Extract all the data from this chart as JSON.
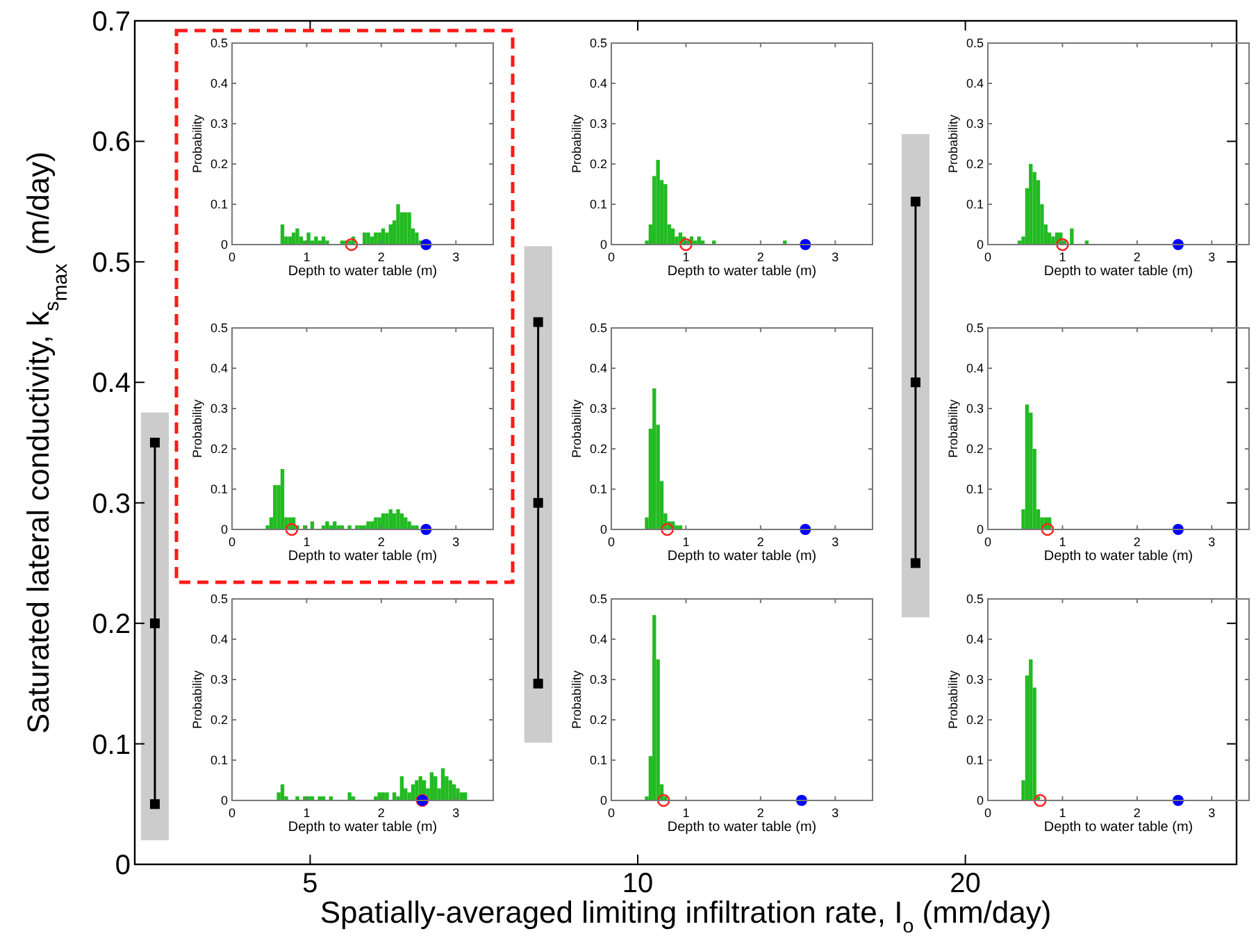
{
  "chart_data": [
    {
      "type": "line",
      "xlabel": "Spatially-averaged limiting infiltration rate, I$_{o}$ (mm/day)",
      "ylabel": "Saturated lateral conductivity, k$_{s}$$_{max}$ (m/day)",
      "log": "x",
      "xlim": [
        3.45,
        35.5
      ],
      "xticks": [
        5,
        10,
        20
      ],
      "ylim": [
        0,
        0.7
      ],
      "yticks": [
        0,
        0.1,
        0.2,
        0.3,
        0.4,
        0.5,
        0.6,
        0.7
      ],
      "grid": false,
      "series": [
        {
          "type": "bar",
          "x": [
            3.6,
            8.1,
            18
          ],
          "base": [
            0.02,
            0.101,
            0.205
          ],
          "values": [
            0.355,
            0.412,
            0.401
          ],
          "color": "#cccccc"
        },
        {
          "type": "line",
          "x": [
            3.6,
            3.6,
            3.6
          ],
          "values": [
            0.05,
            0.2,
            0.35
          ],
          "color": "#000000",
          "marker": "square"
        },
        {
          "type": "line",
          "x": [
            8.1,
            8.1,
            8.1
          ],
          "values": [
            0.15,
            0.3,
            0.45
          ],
          "color": "#000000",
          "marker": "square"
        },
        {
          "type": "line",
          "x": [
            18,
            18,
            18
          ],
          "values": [
            0.25,
            0.4,
            0.55
          ],
          "color": "#000000",
          "marker": "square"
        }
      ]
    },
    {
      "type": "histogram",
      "xlabel": "Depth to water table (m)",
      "ylabel": "Probability",
      "xlim": [
        0,
        3.5
      ],
      "xticks": [
        0,
        1,
        2,
        3
      ],
      "ylim": [
        0,
        0.5
      ],
      "yticks": [
        0,
        0.1,
        0.2,
        0.3,
        0.4,
        0.5
      ],
      "series": [
        {
          "type": "histogram",
          "color": "#22bb22",
          "bins": [
            0.65,
            0.7,
            0.75,
            0.8,
            0.85,
            0.9,
            0.95,
            1,
            1.05,
            1.1,
            1.15,
            1.2,
            1.25,
            1.3,
            1.35,
            1.4,
            1.45,
            1.5,
            1.55,
            1.6,
            1.65,
            1.7,
            1.75,
            1.8,
            1.85,
            1.9,
            1.95,
            2,
            2.05,
            2.1,
            2.15,
            2.2,
            2.25,
            2.3,
            2.35,
            2.4,
            2.45,
            2.5,
            2.55
          ],
          "values": [
            0.05,
            0.02,
            0.02,
            0.03,
            0.04,
            0.02,
            0.01,
            0.03,
            0.01,
            0.02,
            0.01,
            0.02,
            0.01,
            0,
            0,
            0,
            0.01,
            0.01,
            0.01,
            0.02,
            0,
            0,
            0.03,
            0.03,
            0.02,
            0.03,
            0.03,
            0.04,
            0.03,
            0.05,
            0.06,
            0.1,
            0.08,
            0.08,
            0.08,
            0.04,
            0.03,
            0.01
          ]
        },
        {
          "type": "scatter",
          "x": [
            1.6
          ],
          "values": [
            0
          ],
          "color": "#ff2222",
          "marker": "circle-open"
        },
        {
          "type": "scatter",
          "x": [
            2.6
          ],
          "values": [
            0
          ],
          "color": "#0000ff",
          "marker": "circle"
        }
      ]
    },
    {
      "type": "histogram",
      "xlabel": "Depth to water table (m)",
      "ylabel": "Probability",
      "xlim": [
        0,
        3.5
      ],
      "xticks": [
        0,
        1,
        2,
        3
      ],
      "ylim": [
        0,
        0.5
      ],
      "yticks": [
        0,
        0.1,
        0.2,
        0.3,
        0.4,
        0.5
      ],
      "series": [
        {
          "type": "histogram",
          "color": "#22bb22",
          "bins": [
            0.45,
            0.5,
            0.55,
            0.6,
            0.65,
            0.7,
            0.75,
            0.8,
            0.85,
            0.9,
            0.95,
            1,
            1.05,
            1.1,
            1.15,
            1.2,
            1.25,
            1.3,
            1.35,
            1.4,
            1.45,
            1.5,
            1.55,
            1.6,
            1.65,
            1.7,
            1.75,
            1.8,
            1.85,
            1.9,
            1.95,
            2,
            2.05,
            2.1,
            2.15,
            2.2,
            2.25,
            2.3,
            2.35
          ],
          "values": [
            0.01,
            0.05,
            0.17,
            0.21,
            0.16,
            0.15,
            0.05,
            0.04,
            0.02,
            0.03,
            0.02,
            0.01,
            0.02,
            0.01,
            0.02,
            0.01,
            0,
            0,
            0.01,
            0,
            0,
            0,
            0,
            0,
            0,
            0,
            0,
            0,
            0,
            0,
            0,
            0,
            0,
            0,
            0,
            0,
            0,
            0.01
          ]
        },
        {
          "type": "scatter",
          "x": [
            1
          ],
          "values": [
            0
          ],
          "color": "#ff2222",
          "marker": "circle-open"
        },
        {
          "type": "scatter",
          "x": [
            2.6
          ],
          "values": [
            0
          ],
          "color": "#0000ff",
          "marker": "circle"
        }
      ]
    },
    {
      "type": "histogram",
      "xlabel": "Depth to water table (m)",
      "ylabel": "Probability",
      "xlim": [
        0,
        3.5
      ],
      "xticks": [
        0,
        1,
        2,
        3
      ],
      "ylim": [
        0,
        0.5
      ],
      "yticks": [
        0,
        0.1,
        0.2,
        0.3,
        0.4,
        0.5
      ],
      "series": [
        {
          "type": "histogram",
          "color": "#22bb22",
          "bins": [
            0.4,
            0.45,
            0.5,
            0.55,
            0.6,
            0.65,
            0.7,
            0.75,
            0.8,
            0.85,
            0.9,
            0.95,
            1,
            1.05,
            1.1,
            1.15,
            1.2,
            1.25,
            1.3,
            1.35
          ],
          "values": [
            0.01,
            0.02,
            0.14,
            0.2,
            0.18,
            0.16,
            0.1,
            0.05,
            0.03,
            0.02,
            0.03,
            0.03,
            0.01,
            0,
            0.04,
            0,
            0,
            0,
            0.01
          ]
        },
        {
          "type": "scatter",
          "x": [
            1
          ],
          "values": [
            0
          ],
          "color": "#ff2222",
          "marker": "circle-open"
        },
        {
          "type": "scatter",
          "x": [
            2.55
          ],
          "values": [
            0
          ],
          "color": "#0000ff",
          "marker": "circle"
        }
      ]
    },
    {
      "type": "histogram",
      "xlabel": "Depth to water table (m)",
      "ylabel": "Probability",
      "xlim": [
        0,
        3.5
      ],
      "xticks": [
        0,
        1,
        2,
        3
      ],
      "ylim": [
        0,
        0.5
      ],
      "yticks": [
        0,
        0.1,
        0.2,
        0.3,
        0.4,
        0.5
      ],
      "series": [
        {
          "type": "histogram",
          "color": "#22bb22",
          "bins": [
            0.45,
            0.5,
            0.55,
            0.6,
            0.65,
            0.7,
            0.75,
            0.8,
            0.85,
            0.9,
            0.95,
            1,
            1.05,
            1.1,
            1.15,
            1.2,
            1.25,
            1.3,
            1.35,
            1.4,
            1.45,
            1.5,
            1.55,
            1.6,
            1.65,
            1.7,
            1.75,
            1.8,
            1.85,
            1.9,
            1.95,
            2,
            2.05,
            2.1,
            2.15,
            2.2,
            2.25,
            2.3,
            2.35,
            2.4,
            2.45,
            2.5
          ],
          "values": [
            0.01,
            0.03,
            0.11,
            0.11,
            0.15,
            0.03,
            0.03,
            0.03,
            0.01,
            0,
            0.01,
            0,
            0.02,
            0,
            0,
            0.01,
            0.02,
            0.01,
            0.02,
            0.01,
            0.01,
            0,
            0.01,
            0,
            0.01,
            0.01,
            0.01,
            0.02,
            0.02,
            0.03,
            0.03,
            0.04,
            0.04,
            0.05,
            0.04,
            0.05,
            0.04,
            0.03,
            0.02,
            0.01,
            0.01
          ]
        },
        {
          "type": "scatter",
          "x": [
            0.8
          ],
          "values": [
            0
          ],
          "color": "#ff2222",
          "marker": "circle-open"
        },
        {
          "type": "scatter",
          "x": [
            2.6
          ],
          "values": [
            0
          ],
          "color": "#0000ff",
          "marker": "circle"
        }
      ]
    },
    {
      "type": "histogram",
      "xlabel": "Depth to water table (m)",
      "ylabel": "Probability",
      "xlim": [
        0,
        3.5
      ],
      "xticks": [
        0,
        1,
        2,
        3
      ],
      "ylim": [
        0,
        0.5
      ],
      "yticks": [
        0,
        0.1,
        0.2,
        0.3,
        0.4,
        0.5
      ],
      "series": [
        {
          "type": "histogram",
          "color": "#22bb22",
          "bins": [
            0.45,
            0.5,
            0.55,
            0.6,
            0.65,
            0.7,
            0.75,
            0.8,
            0.85,
            0.9,
            0.95
          ],
          "values": [
            0.03,
            0.25,
            0.35,
            0.26,
            0.12,
            0.04,
            0.02,
            0.02,
            0.01,
            0.01
          ]
        },
        {
          "type": "scatter",
          "x": [
            0.75
          ],
          "values": [
            0
          ],
          "color": "#ff2222",
          "marker": "circle-open"
        },
        {
          "type": "scatter",
          "x": [
            2.6
          ],
          "values": [
            0
          ],
          "color": "#0000ff",
          "marker": "circle"
        }
      ]
    },
    {
      "type": "histogram",
      "xlabel": "Depth to water table (m)",
      "ylabel": "Probability",
      "xlim": [
        0,
        3.5
      ],
      "xticks": [
        0,
        1,
        2,
        3
      ],
      "ylim": [
        0,
        0.5
      ],
      "yticks": [
        0,
        0.1,
        0.2,
        0.3,
        0.4,
        0.5
      ],
      "series": [
        {
          "type": "histogram",
          "color": "#22bb22",
          "bins": [
            0.45,
            0.5,
            0.55,
            0.6,
            0.65,
            0.7,
            0.75,
            0.8,
            0.85
          ],
          "values": [
            0.05,
            0.31,
            0.29,
            0.2,
            0.05,
            0.03,
            0.03,
            0.03
          ]
        },
        {
          "type": "scatter",
          "x": [
            0.8
          ],
          "values": [
            0
          ],
          "color": "#ff2222",
          "marker": "circle-open"
        },
        {
          "type": "scatter",
          "x": [
            2.55
          ],
          "values": [
            0
          ],
          "color": "#0000ff",
          "marker": "circle"
        }
      ]
    },
    {
      "type": "histogram",
      "xlabel": "Depth to water table (m)",
      "ylabel": "Probability",
      "xlim": [
        0,
        3.5
      ],
      "xticks": [
        0,
        1,
        2,
        3
      ],
      "ylim": [
        0,
        0.5
      ],
      "yticks": [
        0,
        0.1,
        0.2,
        0.3,
        0.4,
        0.5
      ],
      "series": [
        {
          "type": "histogram",
          "color": "#22bb22",
          "bins": [
            0.6,
            0.65,
            0.7,
            0.75,
            0.8,
            0.85,
            0.9,
            0.95,
            1,
            1.05,
            1.1,
            1.15,
            1.2,
            1.25,
            1.3,
            1.35,
            1.4,
            1.45,
            1.5,
            1.55,
            1.6,
            1.65,
            1.7,
            1.75,
            1.8,
            1.85,
            1.9,
            1.95,
            2,
            2.05,
            2.1,
            2.15,
            2.2,
            2.25,
            2.3,
            2.35,
            2.4,
            2.45,
            2.5,
            2.55,
            2.6,
            2.65,
            2.7,
            2.75,
            2.8,
            2.85,
            2.9,
            2.95,
            3,
            3.05,
            3.1,
            3.15
          ],
          "values": [
            0.02,
            0.04,
            0.01,
            0,
            0,
            0.01,
            0,
            0.01,
            0.01,
            0.01,
            0,
            0.01,
            0.01,
            0,
            0.01,
            0,
            0,
            0,
            0,
            0.02,
            0.01,
            0,
            0,
            0,
            0,
            0,
            0.01,
            0.02,
            0.02,
            0.02,
            0,
            0.02,
            0.01,
            0.06,
            0.03,
            0.02,
            0.04,
            0.05,
            0.06,
            0.05,
            0.03,
            0.07,
            0.06,
            0.03,
            0.08,
            0.06,
            0.05,
            0.04,
            0.03,
            0.02,
            0.02
          ]
        },
        {
          "type": "scatter",
          "x": [
            2.55
          ],
          "values": [
            0
          ],
          "color": "#ff2222",
          "marker": "circle-open"
        },
        {
          "type": "scatter",
          "x": [
            2.55
          ],
          "values": [
            0
          ],
          "color": "#0000ff",
          "marker": "circle"
        }
      ]
    },
    {
      "type": "histogram",
      "xlabel": "Depth to water table (m)",
      "ylabel": "Probability",
      "xlim": [
        0,
        3.5
      ],
      "xticks": [
        0,
        1,
        2,
        3
      ],
      "ylim": [
        0,
        0.5
      ],
      "yticks": [
        0,
        0.1,
        0.2,
        0.3,
        0.4,
        0.5
      ],
      "series": [
        {
          "type": "histogram",
          "color": "#22bb22",
          "bins": [
            0.45,
            0.5,
            0.55,
            0.6,
            0.65,
            0.7,
            0.75
          ],
          "values": [
            0.01,
            0.11,
            0.46,
            0.35,
            0.04,
            0.01
          ]
        },
        {
          "type": "scatter",
          "x": [
            0.7
          ],
          "values": [
            0
          ],
          "color": "#ff2222",
          "marker": "circle-open"
        },
        {
          "type": "scatter",
          "x": [
            2.55
          ],
          "values": [
            0
          ],
          "color": "#0000ff",
          "marker": "circle"
        }
      ]
    },
    {
      "type": "histogram",
      "xlabel": "Depth to water table (m)",
      "ylabel": "Probability",
      "xlim": [
        0,
        3.5
      ],
      "xticks": [
        0,
        1,
        2,
        3
      ],
      "ylim": [
        0,
        0.5
      ],
      "yticks": [
        0,
        0.1,
        0.2,
        0.3,
        0.4,
        0.5
      ],
      "series": [
        {
          "type": "histogram",
          "color": "#22bb22",
          "bins": [
            0.45,
            0.5,
            0.55,
            0.6,
            0.65,
            0.7
          ],
          "values": [
            0.05,
            0.31,
            0.35,
            0.28,
            0.01
          ]
        },
        {
          "type": "scatter",
          "x": [
            0.7
          ],
          "values": [
            0
          ],
          "color": "#ff2222",
          "marker": "circle-open"
        },
        {
          "type": "scatter",
          "x": [
            2.55
          ],
          "values": [
            0
          ],
          "color": "#0000ff",
          "marker": "circle"
        }
      ]
    }
  ]
}
